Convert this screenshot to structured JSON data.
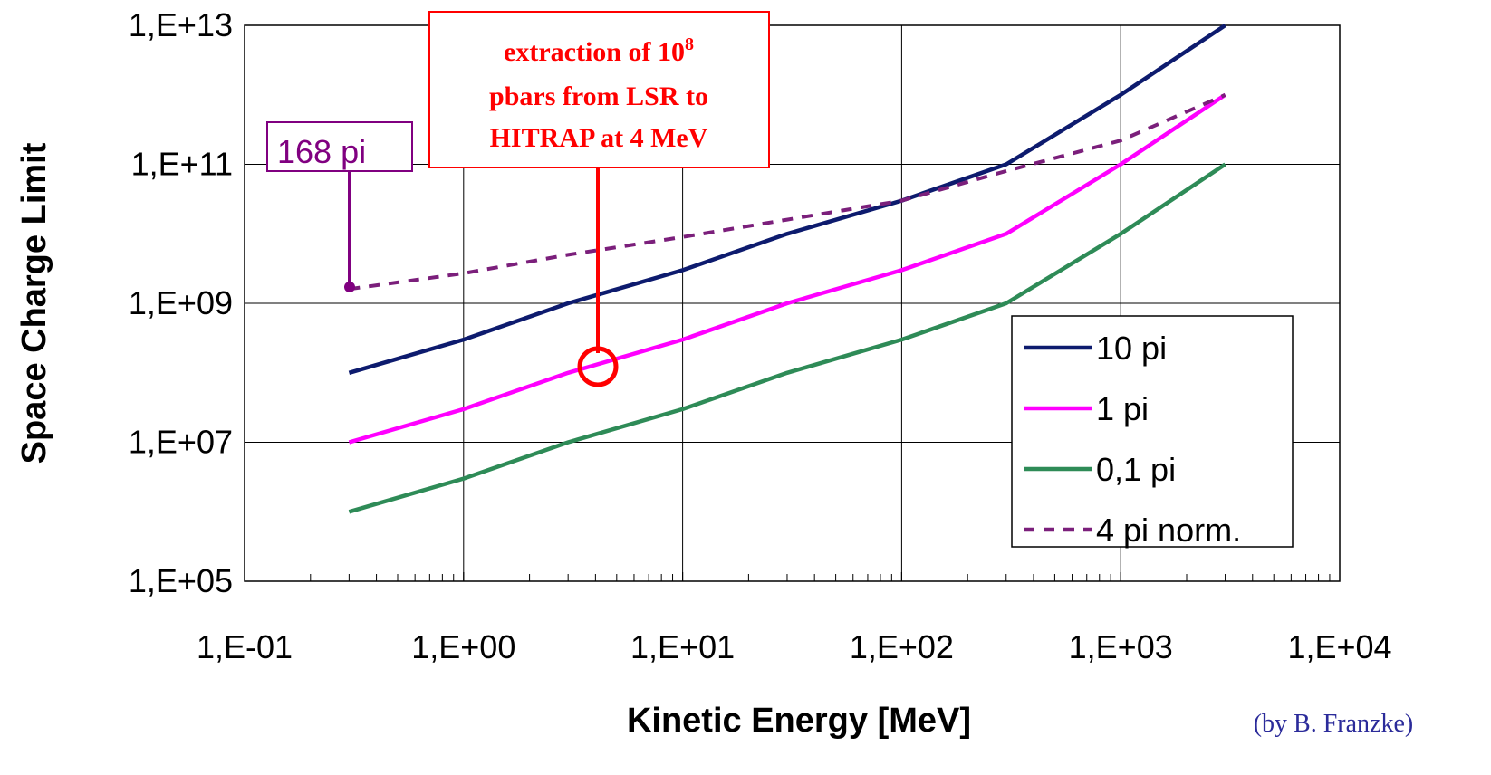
{
  "chart_data": {
    "type": "line",
    "xlabel": "Kinetic Energy [MeV]",
    "ylabel": "Space Charge Limit",
    "x_scale": "log",
    "y_scale": "log",
    "xlim": [
      0.1,
      10000
    ],
    "ylim": [
      100000,
      10000000000000
    ],
    "x_ticks": [
      "1,E-01",
      "1,E+00",
      "1,E+01",
      "1,E+02",
      "1,E+03",
      "1,E+04"
    ],
    "y_ticks": [
      "1,E+05",
      "1,E+07",
      "1,E+09",
      "1,E+11",
      "1,E+13"
    ],
    "grid": "major gridlines on both axes",
    "legend_position": "bottom-right",
    "series": [
      {
        "name": "10 pi",
        "color": "#0d1b6e",
        "dash": false,
        "x": [
          0.3,
          1,
          3,
          10,
          30,
          100,
          300,
          1000,
          3000
        ],
        "y": [
          100000000,
          300000000,
          1000000000,
          3000000000,
          10000000000,
          30000000000,
          100000000000,
          1000000000000,
          10000000000000
        ]
      },
      {
        "name": "1 pi",
        "color": "#ff00ff",
        "dash": false,
        "x": [
          0.3,
          1,
          3,
          10,
          30,
          100,
          300,
          1000,
          3000
        ],
        "y": [
          10000000,
          30000000,
          100000000,
          300000000,
          1000000000,
          3000000000,
          10000000000,
          100000000000,
          1000000000000
        ]
      },
      {
        "name": "0,1 pi",
        "color": "#2e8b57",
        "dash": false,
        "x": [
          0.3,
          1,
          3,
          10,
          30,
          100,
          300,
          1000,
          3000
        ],
        "y": [
          1000000,
          3000000,
          10000000,
          30000000,
          100000000,
          300000000,
          1000000000,
          10000000000,
          100000000000
        ]
      },
      {
        "name": "4 pi norm.",
        "color": "#7b1f7b",
        "dash": true,
        "x": [
          0.3,
          1,
          3,
          10,
          30,
          100,
          300,
          1000,
          3000
        ],
        "y": [
          1600000000,
          2700000000,
          5000000000,
          9000000000,
          16000000000,
          30000000000,
          80000000000,
          220000000000,
          1000000000000
        ]
      }
    ],
    "annotations": [
      {
        "text_lines": [
          "extraction of 10",
          "pbars from LSR to",
          "HITRAP at 4 MeV"
        ],
        "superscript": "8",
        "color": "#ff0000",
        "x": 4,
        "y": 130000000
      },
      {
        "text": "168 pi",
        "color": "#800080",
        "x": 0.3,
        "y": 1600000000
      }
    ],
    "credit": "(by B. Franzke)",
    "credit_color": "#2b2b9a"
  }
}
